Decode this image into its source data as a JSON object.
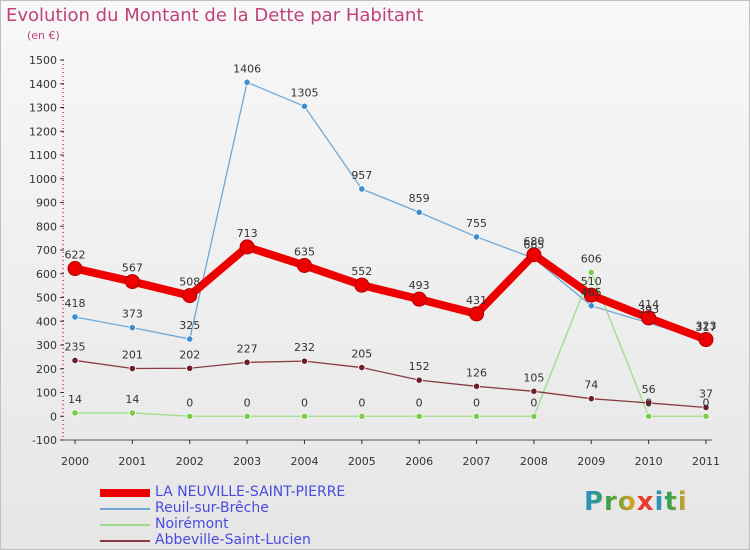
{
  "title": "Evolution du Montant de la Dette par Habitant",
  "subtitle": "(en €)",
  "brand": {
    "prefix": "Pro",
    "x": "x",
    "suffix": "iti"
  },
  "chart_data": {
    "type": "line",
    "title": "Evolution du Montant de la Dette par Habitant",
    "ylabel": "(en €)",
    "xlabel": "",
    "x": [
      "2000",
      "2001",
      "2002",
      "2003",
      "2004",
      "2005",
      "2006",
      "2007",
      "2008",
      "2009",
      "2010",
      "2011"
    ],
    "ylim": [
      -100,
      1500
    ],
    "yticks": [
      -100,
      0,
      100,
      200,
      300,
      400,
      500,
      600,
      700,
      800,
      900,
      1000,
      1100,
      1200,
      1300,
      1400,
      1500
    ],
    "grid": false,
    "legend_position": "bottom-left",
    "series": [
      {
        "name": "LA NEUVILLE-SAINT-PIERRE",
        "color": "#ee0000",
        "width": 8,
        "marker": "#ee0000",
        "values": [
          622,
          567,
          508,
          713,
          635,
          552,
          493,
          431,
          680,
          510,
          414,
          323
        ],
        "labels": [
          "622",
          "567",
          "508",
          "713",
          "635",
          "552",
          "493",
          "431",
          "680",
          "510",
          "414",
          "323"
        ]
      },
      {
        "name": "Reuil-sur-Brêche",
        "color": "#6fa8d6",
        "width": 1.3,
        "marker": "#3d8fd0",
        "values": [
          418,
          373,
          325,
          1406,
          1305,
          957,
          859,
          755,
          665,
          465,
          393,
          317
        ],
        "labels": [
          "418",
          "373",
          "325",
          "1406",
          "1305",
          "957",
          "859",
          "755",
          "665",
          "465",
          "393",
          "317"
        ]
      },
      {
        "name": "Noirémont",
        "color": "#9fdc8a",
        "width": 1.3,
        "marker": "#7ccc4a",
        "values": [
          14,
          14,
          0,
          0,
          0,
          0,
          0,
          0,
          0,
          606,
          0,
          0
        ],
        "labels": [
          "14",
          "14",
          "0",
          "0",
          "0",
          "0",
          "0",
          "0",
          "0",
          "606",
          "0",
          "0"
        ]
      },
      {
        "name": "Abbeville-Saint-Lucien",
        "color": "#8a3a44",
        "width": 1.3,
        "marker": "#6e1e28",
        "values": [
          235,
          201,
          202,
          227,
          232,
          205,
          152,
          126,
          105,
          74,
          56,
          37
        ],
        "labels": [
          "235",
          "201",
          "202",
          "227",
          "232",
          "205",
          "152",
          "126",
          "105",
          "74",
          "56",
          "37"
        ]
      }
    ]
  }
}
